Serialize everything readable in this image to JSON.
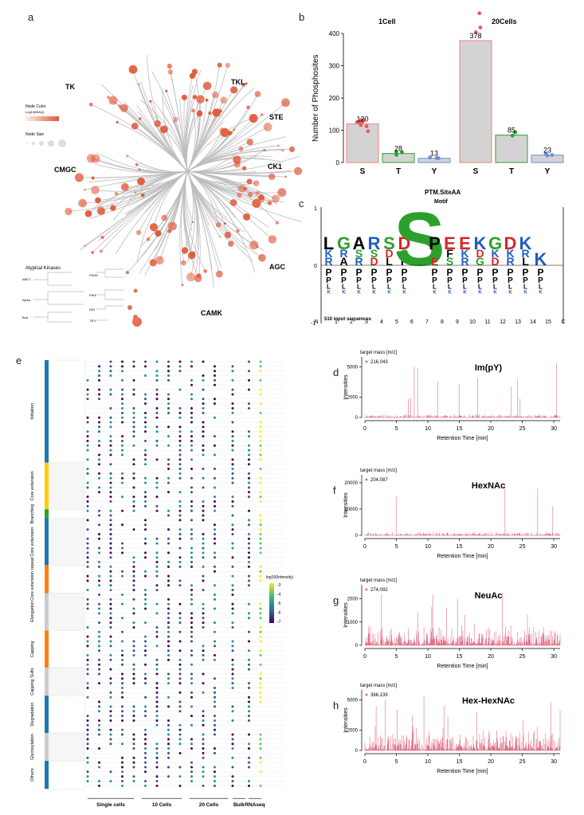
{
  "panel_letters": [
    "a",
    "b",
    "c",
    "d",
    "e",
    "f",
    "g",
    "h"
  ],
  "panel_a": {
    "groups": [
      "TK",
      "TKL",
      "STE",
      "CMGC",
      "CK1",
      "AGC",
      "CAMK"
    ],
    "legend_color_title": "Node Color",
    "legend_color_sub": "Log10(iBAQ)",
    "legend_size_title": "Node Size",
    "atypical_title": "Atypical Kinases",
    "atypical_groups": [
      "ABC1",
      "Alpha",
      "Bud"
    ],
    "atypical_subgroups": [
      "PDHK",
      "PIKK",
      "RIO",
      "TIF1"
    ]
  },
  "panel_b": {
    "ylabel": "Number of Phosphosites",
    "panels": [
      "1Cell",
      "20Cells"
    ],
    "chart_data": {
      "type": "bar",
      "title": "",
      "ylabel": "Number of Phosphosites",
      "ylim": [
        0,
        420
      ],
      "yticks": [
        0,
        100,
        200,
        300,
        400
      ],
      "groups": [
        {
          "name": "1Cell",
          "categories": [
            "S",
            "T",
            "Y"
          ],
          "values": [
            120,
            28,
            13
          ]
        },
        {
          "name": "20Cells",
          "categories": [
            "S",
            "T",
            "Y"
          ],
          "values": [
            378,
            85,
            23
          ]
        }
      ]
    },
    "bar_labels": [
      "120",
      "28",
      "13",
      "378",
      "85",
      "23"
    ]
  },
  "panel_c": {
    "title": "PTM.SiteAA",
    "subtitle": "Motif",
    "caption": "510 input sequences",
    "yticks": [
      "1",
      "0",
      "-1"
    ],
    "xticks": [
      "N",
      "1",
      "2",
      "3",
      "4",
      "5",
      "6",
      "7",
      "8",
      "9",
      "10",
      "11",
      "12",
      "13",
      "14",
      "15",
      "C"
    ]
  },
  "panel_e": {
    "row_groups": [
      "Initiation",
      "Core extension",
      "Branching",
      "Core extension",
      "Core extension repeat",
      "Elongation",
      "Capping",
      "Capping Sulfo",
      "Degradation",
      "Glycosylation",
      "Others"
    ],
    "columns": [
      "Single cells",
      "10 Cells",
      "20 Cells",
      "Bulk",
      "RNAseq"
    ],
    "legend_title": "log10(Intensity)",
    "legend_ticks": [
      "-3",
      "-4",
      "-5",
      "-6",
      "-7"
    ]
  },
  "chromatograms": [
    {
      "letter": "d",
      "name": "Im(pY)",
      "target_label": "target mass [m/z]",
      "mass": "216.043",
      "yticks": [
        "0",
        "2000",
        "5000"
      ],
      "ymax": 6000
    },
    {
      "letter": "f",
      "name": "HexNAc",
      "target_label": "target mass [m/z]",
      "mass": "204.087",
      "yticks": [
        "0",
        "10000",
        "20000"
      ],
      "ymax": 23000
    },
    {
      "letter": "g",
      "name": "NeuAc",
      "target_label": "target mass [m/z]",
      "mass": "274.092",
      "yticks": [
        "0",
        "1000",
        "2000"
      ],
      "ymax": 2600
    },
    {
      "letter": "h",
      "name": "Hex-HexNAc",
      "target_label": "target mass [m/z]",
      "mass": "366.139",
      "yticks": [
        "0",
        "2000",
        "5000"
      ],
      "ymax": 6000
    }
  ],
  "chromatogram_axis": {
    "xlabel": "Retention Time [min]",
    "ylabel": "Intensities",
    "xticks": [
      "0",
      "5",
      "10",
      "15",
      "20",
      "25",
      "30"
    ]
  },
  "colors": {
    "s_bar": "#f08080",
    "t_bar": "#2ca02c",
    "y_bar": "#6a8fd6",
    "bar_fill": "#d3d3d3",
    "trace": "#e0708a",
    "node": "#e05a3a"
  }
}
